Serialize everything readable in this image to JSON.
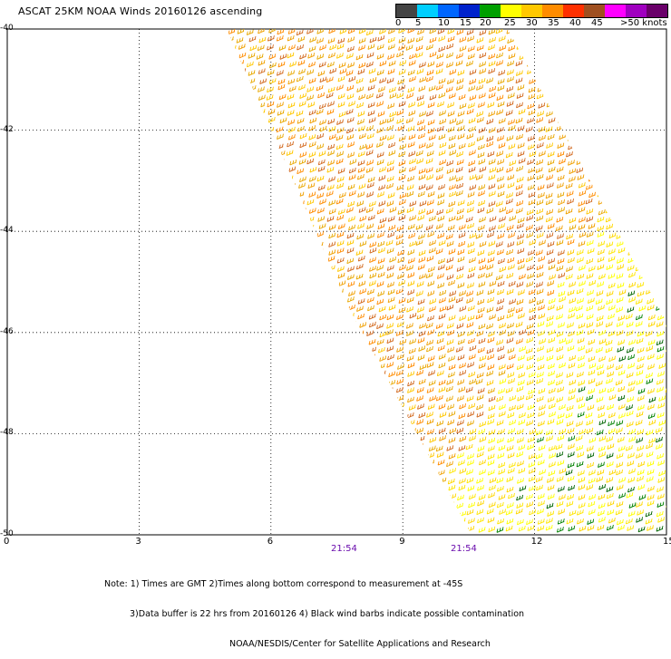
{
  "title": "ASCAT 25KM NOAA Winds 20160126 ascending",
  "legend": {
    "colors": [
      "#444444",
      "#00cfff",
      "#0066ff",
      "#0022cc",
      "#00a000",
      "#ffff00",
      "#ffc800",
      "#ff8c00",
      "#ff3000",
      "#a05020",
      "#ff00ff",
      "#a000c0",
      "#6a006a"
    ],
    "labels": [
      "0",
      "5",
      "10",
      "15",
      "20",
      "25",
      "30",
      "35",
      "40",
      "45",
      ">50 knots"
    ]
  },
  "axes": {
    "x_ticks": [
      "0",
      "3",
      "6",
      "9",
      "12",
      "15"
    ],
    "y_ticks": [
      "-40",
      "-42",
      "-44",
      "-46",
      "-48",
      "-50"
    ],
    "xlim": [
      0,
      15
    ],
    "ylim": [
      -50,
      -40
    ]
  },
  "time_labels": [
    "21:54",
    "21:54"
  ],
  "notes": [
    "Note: 1) Times are GMT 2)Times along bottom correspond to measurement at -45S",
    "3)Data buffer is 22 hrs from 20160126 4) Black wind barbs indicate possible contamination",
    "NOAA/NESDIS/Center for Satellite Applications and Research"
  ]
}
